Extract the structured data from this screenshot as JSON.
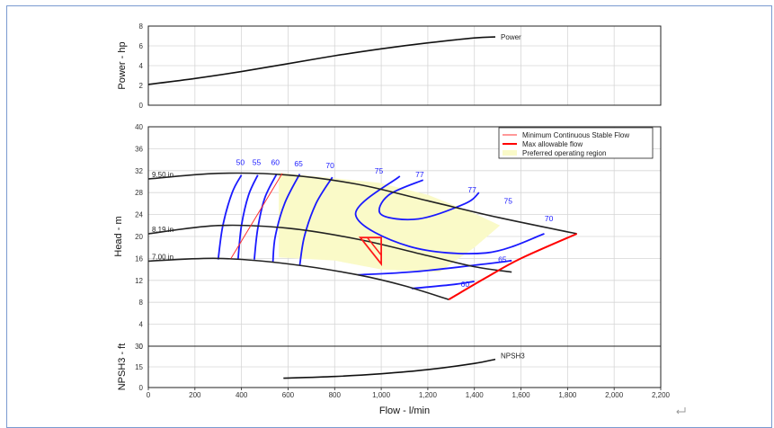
{
  "chart_data": [
    {
      "type": "line",
      "panel": "power",
      "ylabel": "Power - hp",
      "xlim": [
        0,
        2200
      ],
      "ylim": [
        0,
        8
      ],
      "yticks": [
        0,
        2,
        4,
        6,
        8
      ],
      "grid": true,
      "series": [
        {
          "name": "Power",
          "color": "#111111",
          "x": [
            0,
            200,
            400,
            600,
            800,
            1000,
            1200,
            1400,
            1490
          ],
          "y": [
            2.1,
            2.7,
            3.4,
            4.2,
            5.0,
            5.7,
            6.3,
            6.8,
            6.9
          ]
        }
      ]
    },
    {
      "type": "line",
      "panel": "head",
      "ylabel": "Head - m",
      "xlim": [
        0,
        2200
      ],
      "ylim": [
        0,
        40
      ],
      "yticks": [
        0,
        4,
        8,
        12,
        16,
        20,
        24,
        28,
        32,
        36,
        40
      ],
      "grid": true,
      "legend": {
        "placement": "top-right",
        "items": [
          {
            "label": "Minimum Continuous Stable Flow",
            "color": "#ff3030",
            "style": "thin"
          },
          {
            "label": "Max allowable flow",
            "color": "#ff0000",
            "style": "thick"
          },
          {
            "label": "Preferred operating region",
            "color": "#fafac8",
            "style": "area"
          }
        ]
      },
      "impellers": [
        {
          "label": "9.50 in",
          "x": [
            0,
            300,
            600,
            900,
            1200,
            1500,
            1840
          ],
          "y": [
            30.5,
            31.5,
            31.2,
            29.5,
            26.5,
            23.5,
            20.5
          ]
        },
        {
          "label": "8.19 in",
          "x": [
            0,
            300,
            600,
            900,
            1200,
            1400,
            1560
          ],
          "y": [
            20.5,
            22.0,
            21.5,
            19.5,
            16.5,
            14.5,
            13.5
          ]
        },
        {
          "label": "7.00 in",
          "x": [
            0,
            300,
            600,
            900,
            1100,
            1290
          ],
          "y": [
            15.5,
            16.0,
            15.0,
            13.0,
            11.0,
            8.5
          ]
        }
      ],
      "efficiency_labels": [
        {
          "label": "50",
          "x": 395,
          "y": 33.0
        },
        {
          "label": "55",
          "x": 465,
          "y": 33.0
        },
        {
          "label": "60",
          "x": 545,
          "y": 33.0
        },
        {
          "label": "65",
          "x": 645,
          "y": 32.8
        },
        {
          "label": "70",
          "x": 780,
          "y": 32.5
        },
        {
          "label": "75",
          "x": 990,
          "y": 31.5
        },
        {
          "label": "77",
          "x": 1165,
          "y": 30.8
        },
        {
          "label": "77",
          "x": 1390,
          "y": 28.0
        },
        {
          "label": "75",
          "x": 1545,
          "y": 26.0
        },
        {
          "label": "70",
          "x": 1720,
          "y": 22.8
        },
        {
          "label": "65",
          "x": 1520,
          "y": 15.3
        },
        {
          "label": "60",
          "x": 1360,
          "y": 10.8
        }
      ],
      "efficiency_color": "#1a1aff",
      "max_allowable_flow_curve": {
        "x": [
          1290,
          1450,
          1600,
          1840
        ],
        "y": [
          8.5,
          12.5,
          16.0,
          20.5
        ]
      },
      "min_stable_flow_line": {
        "x": [
          355,
          575
        ],
        "y": [
          16.0,
          31.5
        ]
      }
    },
    {
      "type": "line",
      "panel": "npsh",
      "ylabel": "NPSH3 - ft",
      "xlabel": "Flow - l/min",
      "xlim": [
        0,
        2200
      ],
      "xticks": [
        "0",
        "200",
        "400",
        "600",
        "800",
        "1,000",
        "1,200",
        "1,400",
        "1,600",
        "1,800",
        "2,000",
        "2,200"
      ],
      "ylim": [
        0,
        30
      ],
      "yticks": [
        0,
        15,
        30
      ],
      "grid": true,
      "series": [
        {
          "name": "NPSH3",
          "color": "#111111",
          "x": [
            580,
            800,
            1000,
            1200,
            1400,
            1490
          ],
          "y": [
            6.8,
            8.0,
            10.0,
            13.0,
            17.5,
            20.5
          ]
        }
      ]
    }
  ]
}
